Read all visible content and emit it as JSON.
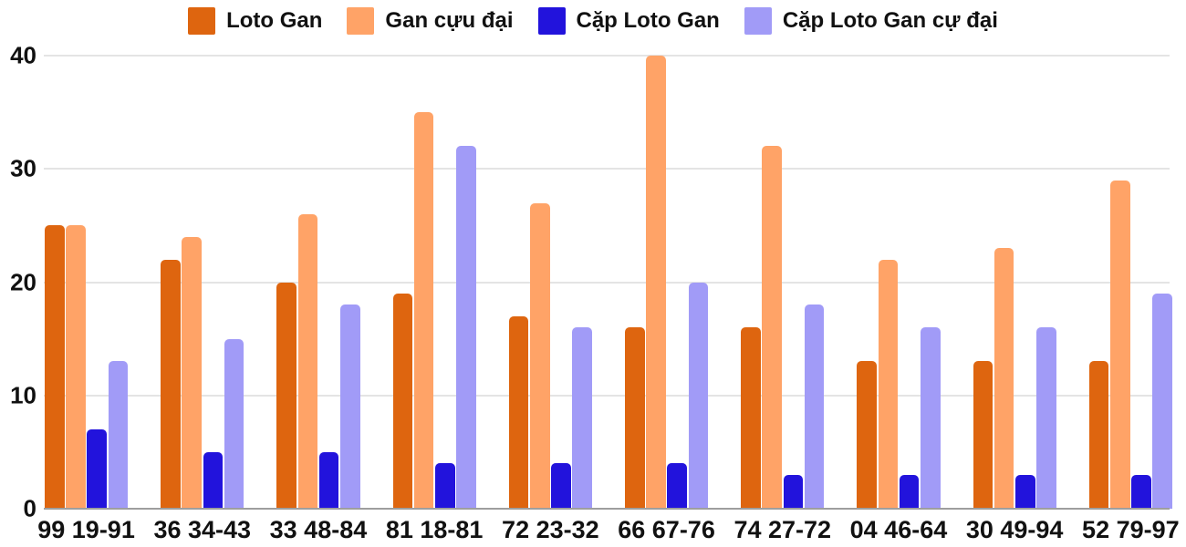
{
  "chart_data": {
    "type": "bar",
    "title": "",
    "xlabel": "",
    "ylabel": "",
    "categories": [
      "99 19-91",
      "36 34-43",
      "33 48-84",
      "81 18-81",
      "72 23-32",
      "66 67-76",
      "74 27-72",
      "04 46-64",
      "30 49-94",
      "52 79-97"
    ],
    "series": [
      {
        "name": "Loto Gan",
        "color": "#de650f",
        "values": [
          25,
          22,
          20,
          19,
          17,
          16,
          16,
          13,
          13,
          13
        ]
      },
      {
        "name": "Gan cựu đại",
        "color": "#ffa367",
        "values": [
          25,
          24,
          26,
          35,
          27,
          40,
          32,
          22,
          23,
          29
        ]
      },
      {
        "name": "Cặp Loto Gan",
        "color": "#2213dc",
        "values": [
          7,
          5,
          5,
          4,
          4,
          4,
          3,
          3,
          3,
          3
        ]
      },
      {
        "name": "Cặp Loto Gan cự đại",
        "color": "#a19bf7",
        "values": [
          13,
          15,
          18,
          32,
          16,
          20,
          18,
          16,
          16,
          19
        ]
      }
    ],
    "ylim": [
      0,
      40
    ],
    "yticks": [
      0,
      10,
      20,
      30,
      40
    ],
    "grid": true,
    "legend_position": "top"
  },
  "colors": {
    "gridline": "#e4e4e4",
    "baseline": "#9e9e9e",
    "text": "#111111",
    "background": "#ffffff"
  }
}
